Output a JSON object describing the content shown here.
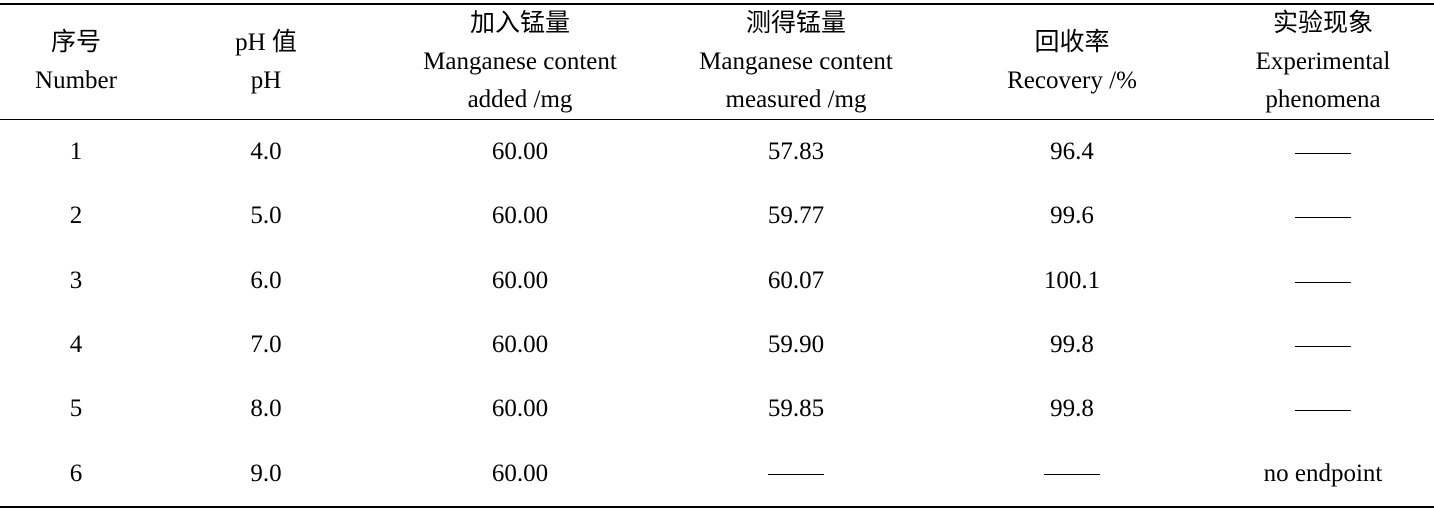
{
  "table": {
    "headers": [
      {
        "zh": "序号",
        "en_lines": [
          "Number"
        ]
      },
      {
        "zh": "pH 值",
        "en_lines": [
          "pH"
        ]
      },
      {
        "zh": "加入锰量",
        "en_lines": [
          "Manganese content",
          "added /mg"
        ]
      },
      {
        "zh": "测得锰量",
        "en_lines": [
          "Manganese content",
          "measured /mg"
        ]
      },
      {
        "zh": "回收率",
        "en_lines": [
          "Recovery /%"
        ]
      },
      {
        "zh": "实验现象",
        "en_lines": [
          "Experimental",
          "phenomena"
        ]
      }
    ],
    "rows": [
      {
        "number": "1",
        "ph": "4.0",
        "added": "60.00",
        "measured": "57.83",
        "recovery": "96.4",
        "phenomena": "——"
      },
      {
        "number": "2",
        "ph": "5.0",
        "added": "60.00",
        "measured": "59.77",
        "recovery": "99.6",
        "phenomena": "——"
      },
      {
        "number": "3",
        "ph": "6.0",
        "added": "60.00",
        "measured": "60.07",
        "recovery": "100.1",
        "phenomena": "——"
      },
      {
        "number": "4",
        "ph": "7.0",
        "added": "60.00",
        "measured": "59.90",
        "recovery": "99.8",
        "phenomena": "——"
      },
      {
        "number": "5",
        "ph": "8.0",
        "added": "60.00",
        "measured": "59.85",
        "recovery": "99.8",
        "phenomena": "——"
      },
      {
        "number": "6",
        "ph": "9.0",
        "added": "60.00",
        "measured": "——",
        "recovery": "——",
        "phenomena": "no endpoint"
      }
    ]
  }
}
